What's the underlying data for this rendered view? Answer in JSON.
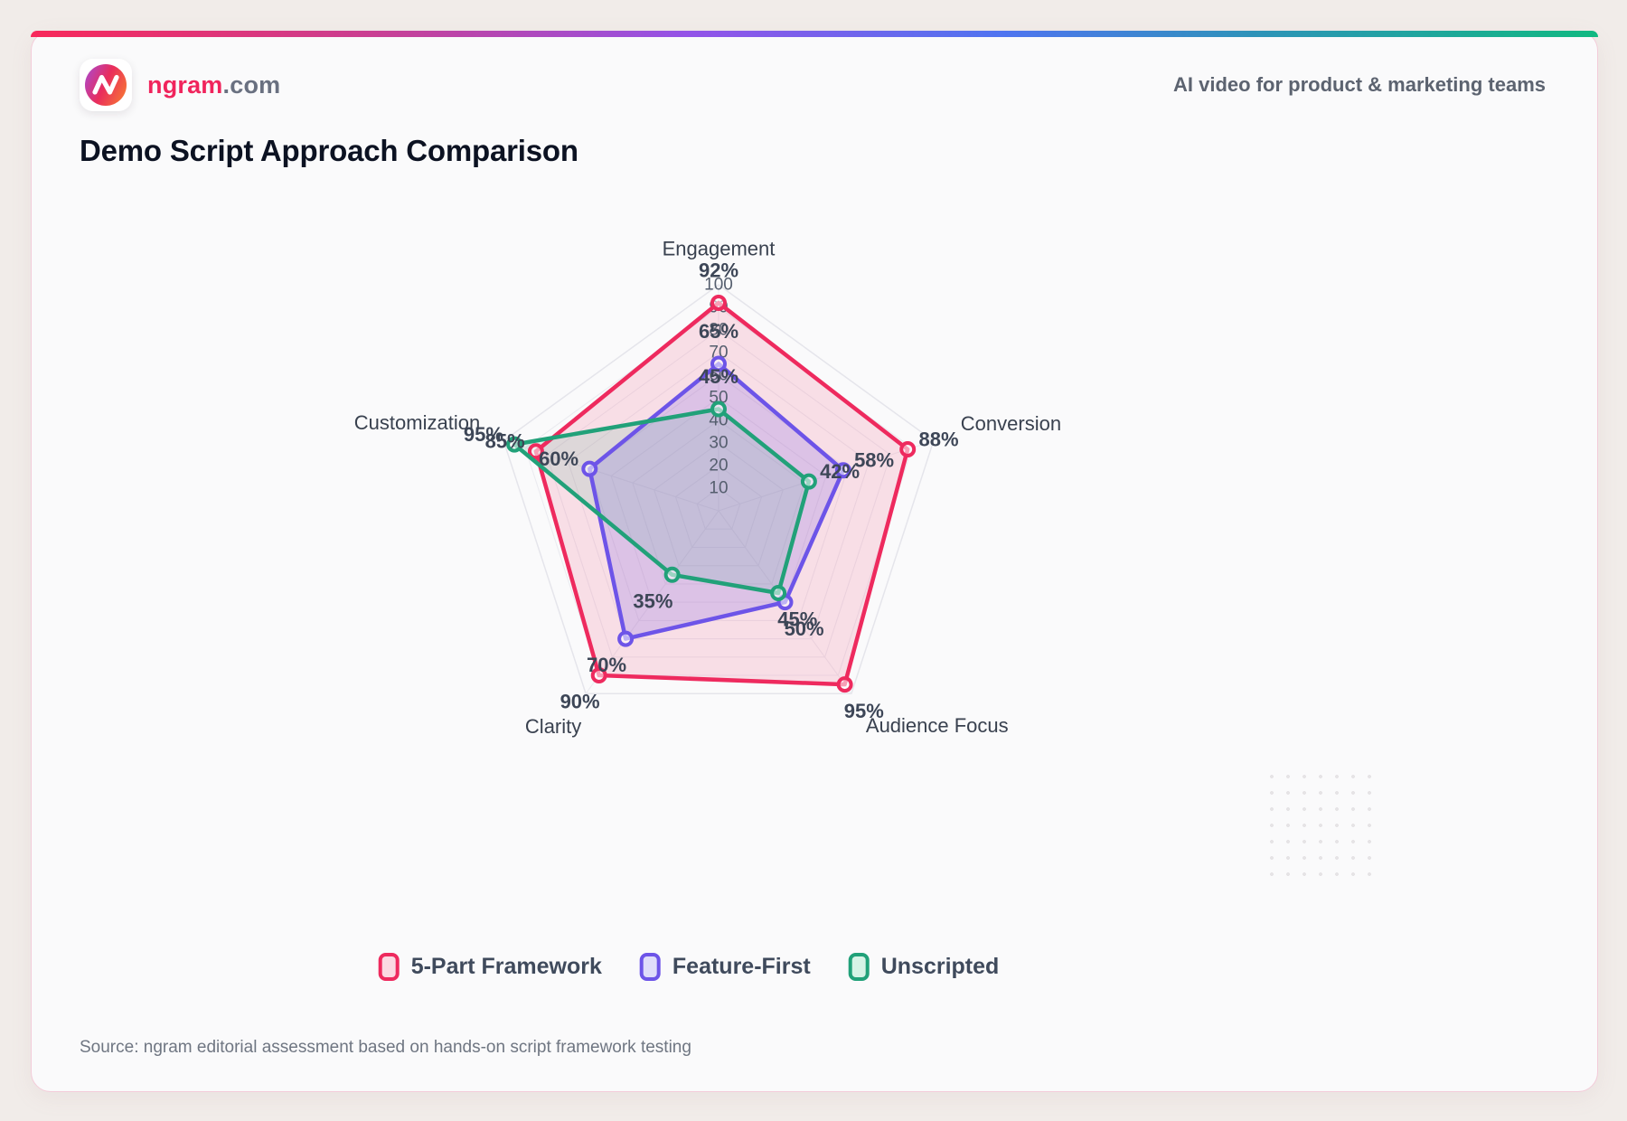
{
  "header": {
    "brand_name": "ngram",
    "brand_suffix": ".com",
    "tagline": "AI video for product & marketing teams"
  },
  "title": "Demo Script Approach Comparison",
  "source": "Source: ngram editorial assessment based on hands-on script framework testing",
  "chart_data": {
    "type": "radar",
    "title": "Demo Script Approach Comparison",
    "categories": [
      "Engagement",
      "Conversion",
      "Audience Focus",
      "Clarity",
      "Customization"
    ],
    "series": [
      {
        "name": "5-Part Framework",
        "values": [
          92,
          88,
          95,
          90,
          85
        ],
        "color": "#ee2a5e",
        "fill": "rgba(238,42,94,0.13)",
        "swatch_fill": "#fbd9e2"
      },
      {
        "name": "Feature-First",
        "values": [
          65,
          58,
          50,
          70,
          60
        ],
        "color": "#6d54e8",
        "fill": "rgba(109,84,232,0.20)",
        "swatch_fill": "#dfdcfa"
      },
      {
        "name": "Unscripted",
        "values": [
          45,
          42,
          45,
          35,
          95
        ],
        "color": "#21a179",
        "fill": "rgba(33,161,121,0.12)",
        "swatch_fill": "#d6f3e6"
      }
    ],
    "ticks": [
      10,
      20,
      30,
      40,
      50,
      60,
      70,
      80,
      90,
      100
    ],
    "rmax": 100,
    "value_suffix": "%",
    "grid": true,
    "legend_position": "bottom"
  }
}
